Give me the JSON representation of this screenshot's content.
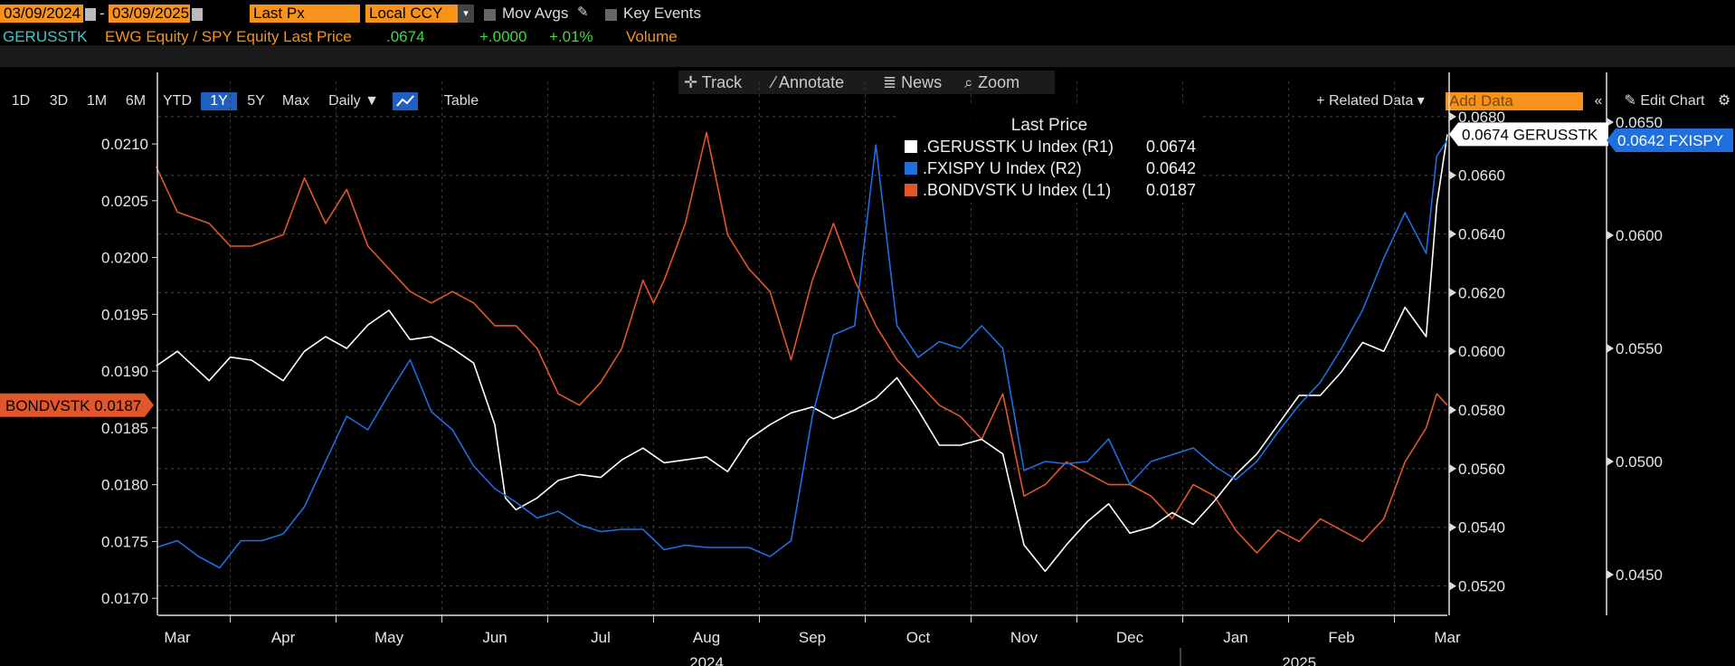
{
  "toolbar": {
    "start_date": "03/09/2024",
    "end_date": "03/09/2025",
    "date_sep": "-",
    "price_field": "Last Px",
    "currency": "Local CCY",
    "mov_avgs": "Mov Avgs",
    "key_events": "Key Events"
  },
  "ticker_row": {
    "ticker": "GERUSSTK",
    "description": "EWG Equity / SPY Equity Last Price",
    "last": ".0674",
    "change": "+.0000",
    "pct_change": "+.01%",
    "volume": "Volume"
  },
  "range_bar": {
    "ranges": [
      "1D",
      "3D",
      "1M",
      "6M",
      "YTD",
      "1Y",
      "5Y",
      "Max"
    ],
    "active": "1Y",
    "frequency": "Daily ▼",
    "table": "Table",
    "related_data": "+ Related Data ▾",
    "add_data_placeholder": "Add Data",
    "edit_chart": "Edit Chart"
  },
  "chart_tools": {
    "track": "Track",
    "annotate": "Annotate",
    "news": "News",
    "zoom": "Zoom"
  },
  "colors": {
    "white_series": "#ffffff",
    "blue_series": "#1e6fe0",
    "orange_series": "#e2562b",
    "accent": "#f7931a",
    "background": "#000000"
  },
  "chart_data": {
    "type": "line",
    "legend_title": "Last Price",
    "legend": [
      {
        "name": ".GERUSSTK U Index",
        "axis": "(R1)",
        "last": "0.0674"
      },
      {
        "name": ".FXISPY U Index",
        "axis": "(R2)",
        "last": "0.0642"
      },
      {
        "name": ".BONDVSTK U Index",
        "axis": "(L1)",
        "last": "0.0187"
      }
    ],
    "x_labels": [
      "Mar",
      "Apr",
      "May",
      "Jun",
      "Jul",
      "Aug",
      "Sep",
      "Oct",
      "Nov",
      "Dec",
      "Jan",
      "Feb",
      "Mar"
    ],
    "x_ticks": [
      0,
      1,
      2,
      3,
      4,
      5,
      6,
      7,
      8,
      9,
      10,
      11,
      12
    ],
    "year_labels": [
      {
        "label": "2024",
        "x": 5.0
      },
      {
        "label": "2025",
        "x": 10.6
      }
    ],
    "x_range": [
      -0.18,
      12.0
    ],
    "axes": {
      "L1": {
        "range": [
          0.01685,
          0.02155
        ],
        "ticks": [
          0.017,
          0.0175,
          0.018,
          0.0185,
          0.019,
          0.0195,
          0.02,
          0.0205,
          0.021
        ],
        "tick_labels": [
          "0.0170",
          "0.0175",
          "0.0180",
          "0.0185",
          "0.0190",
          "0.0195",
          "0.0200",
          "0.0205",
          "0.0210"
        ]
      },
      "R1": {
        "range": [
          0.051,
          0.0692
        ],
        "ticks": [
          0.052,
          0.054,
          0.056,
          0.058,
          0.06,
          0.062,
          0.064,
          0.066,
          0.068
        ],
        "tick_labels": [
          "0.0520",
          "0.0540",
          "0.0560",
          "0.0580",
          "0.0600",
          "0.0620",
          "0.0640",
          "0.0660",
          "0.0680"
        ]
      },
      "R2": {
        "range": [
          0.0432,
          0.0668
        ],
        "ticks": [
          0.045,
          0.05,
          0.055,
          0.06,
          0.065
        ],
        "tick_labels": [
          "0.0450",
          "0.0500",
          "0.0550",
          "0.0600",
          "0.0650"
        ]
      }
    },
    "last_value_tags": {
      "L1": "BONDVSTK 0.0187",
      "R1": "0.0674 GERUSSTK",
      "R2": "0.0642 FXISPY"
    },
    "series": [
      {
        "name": ".BONDVSTK U Index",
        "axis": "L1",
        "x": [
          -0.2,
          0.0,
          0.3,
          0.5,
          0.7,
          1.0,
          1.2,
          1.4,
          1.6,
          1.8,
          2.0,
          2.2,
          2.4,
          2.6,
          2.8,
          3.0,
          3.2,
          3.4,
          3.6,
          3.8,
          4.0,
          4.2,
          4.4,
          4.5,
          4.6,
          4.8,
          5.0,
          5.2,
          5.4,
          5.6,
          5.8,
          6.0,
          6.2,
          6.4,
          6.6,
          6.8,
          7.0,
          7.2,
          7.4,
          7.6,
          7.8,
          8.0,
          8.2,
          8.4,
          8.6,
          8.8,
          9.0,
          9.2,
          9.4,
          9.6,
          9.8,
          10.0,
          10.2,
          10.4,
          10.6,
          10.8,
          11.0,
          11.2,
          11.4,
          11.6,
          11.8,
          11.9,
          12.0
        ],
        "values": [
          0.0208,
          0.0204,
          0.0203,
          0.0201,
          0.0201,
          0.0202,
          0.0207,
          0.0203,
          0.0206,
          0.0201,
          0.0199,
          0.0197,
          0.0196,
          0.0197,
          0.0196,
          0.0194,
          0.0194,
          0.0192,
          0.0188,
          0.0187,
          0.0189,
          0.0192,
          0.0198,
          0.0196,
          0.0198,
          0.0203,
          0.0211,
          0.0202,
          0.0199,
          0.0197,
          0.0191,
          0.0198,
          0.0203,
          0.0198,
          0.0194,
          0.0191,
          0.0189,
          0.0187,
          0.0186,
          0.0184,
          0.0188,
          0.0179,
          0.018,
          0.0182,
          0.0181,
          0.018,
          0.018,
          0.0179,
          0.0177,
          0.018,
          0.0179,
          0.0176,
          0.0174,
          0.0176,
          0.0175,
          0.0177,
          0.0176,
          0.0175,
          0.0177,
          0.0182,
          0.0185,
          0.0188,
          0.0187
        ]
      },
      {
        "name": ".GERUSSTK U Index",
        "axis": "R1",
        "x": [
          -0.2,
          0.0,
          0.3,
          0.5,
          0.7,
          1.0,
          1.2,
          1.4,
          1.6,
          1.8,
          2.0,
          2.2,
          2.4,
          2.6,
          2.8,
          3.0,
          3.1,
          3.2,
          3.4,
          3.6,
          3.8,
          4.0,
          4.2,
          4.4,
          4.6,
          4.8,
          5.0,
          5.2,
          5.4,
          5.6,
          5.8,
          6.0,
          6.2,
          6.4,
          6.6,
          6.8,
          7.0,
          7.2,
          7.4,
          7.6,
          7.8,
          8.0,
          8.2,
          8.4,
          8.6,
          8.8,
          9.0,
          9.2,
          9.4,
          9.6,
          9.8,
          10.0,
          10.2,
          10.4,
          10.6,
          10.8,
          11.0,
          11.2,
          11.4,
          11.6,
          11.8,
          11.9,
          12.0
        ],
        "values": [
          0.0595,
          0.06,
          0.059,
          0.0598,
          0.0597,
          0.059,
          0.06,
          0.0605,
          0.0601,
          0.0609,
          0.0614,
          0.0604,
          0.0605,
          0.0601,
          0.0596,
          0.0575,
          0.055,
          0.0546,
          0.055,
          0.0556,
          0.0558,
          0.0557,
          0.0563,
          0.0567,
          0.0562,
          0.0563,
          0.0564,
          0.0559,
          0.057,
          0.0575,
          0.0579,
          0.0581,
          0.0577,
          0.058,
          0.0584,
          0.0591,
          0.058,
          0.0568,
          0.0568,
          0.057,
          0.0565,
          0.0534,
          0.0525,
          0.0534,
          0.0542,
          0.0548,
          0.0538,
          0.054,
          0.0545,
          0.0541,
          0.0549,
          0.0558,
          0.0565,
          0.0575,
          0.0585,
          0.0585,
          0.0593,
          0.0603,
          0.06,
          0.0615,
          0.0605,
          0.065,
          0.0674
        ]
      },
      {
        "name": ".FXISPY U Index",
        "axis": "R2",
        "x": [
          -0.2,
          0.0,
          0.2,
          0.4,
          0.6,
          0.8,
          1.0,
          1.2,
          1.4,
          1.6,
          1.8,
          2.0,
          2.2,
          2.4,
          2.6,
          2.8,
          3.0,
          3.2,
          3.4,
          3.6,
          3.8,
          4.0,
          4.2,
          4.4,
          4.6,
          4.8,
          5.0,
          5.2,
          5.4,
          5.6,
          5.8,
          6.0,
          6.2,
          6.4,
          6.6,
          6.8,
          7.0,
          7.2,
          7.4,
          7.6,
          7.8,
          8.0,
          8.2,
          8.4,
          8.6,
          8.8,
          9.0,
          9.2,
          9.4,
          9.6,
          9.8,
          10.0,
          10.2,
          10.4,
          10.6,
          10.8,
          11.0,
          11.2,
          11.4,
          11.6,
          11.8,
          11.9,
          12.0
        ],
        "values": [
          0.0462,
          0.0465,
          0.0458,
          0.0453,
          0.0465,
          0.0465,
          0.0468,
          0.048,
          0.05,
          0.052,
          0.0514,
          0.053,
          0.0545,
          0.0522,
          0.0514,
          0.0498,
          0.0488,
          0.0482,
          0.0475,
          0.0478,
          0.0472,
          0.0469,
          0.047,
          0.047,
          0.0461,
          0.0463,
          0.0462,
          0.0462,
          0.0462,
          0.0458,
          0.0465,
          0.052,
          0.0556,
          0.056,
          0.064,
          0.056,
          0.0546,
          0.0553,
          0.055,
          0.056,
          0.055,
          0.0496,
          0.05,
          0.0499,
          0.05,
          0.051,
          0.049,
          0.05,
          0.0503,
          0.0506,
          0.0498,
          0.0492,
          0.05,
          0.0513,
          0.0525,
          0.0535,
          0.055,
          0.0567,
          0.059,
          0.061,
          0.0592,
          0.0635,
          0.0642
        ]
      }
    ]
  }
}
